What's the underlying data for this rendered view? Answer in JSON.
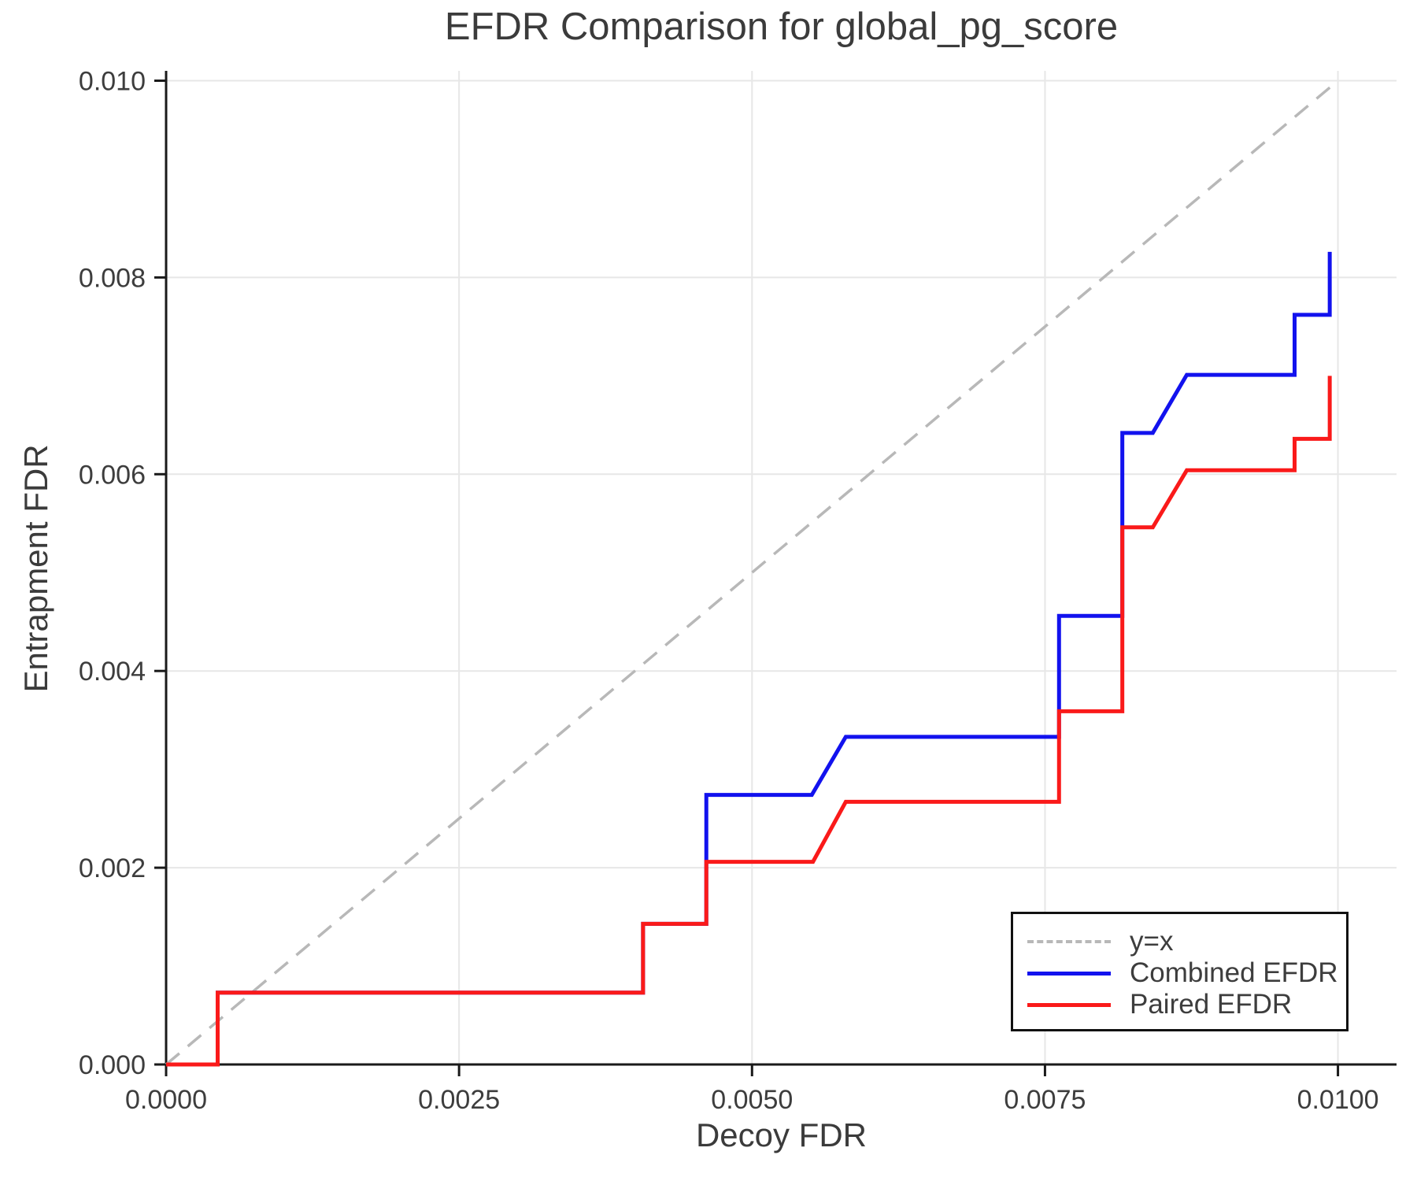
{
  "chart_data": {
    "type": "line",
    "title": "EFDR Comparison for global_pg_score",
    "xlabel": "Decoy FDR",
    "ylabel": "Entrapment FDR",
    "xlim": [
      0,
      0.0105
    ],
    "ylim": [
      0,
      0.0101
    ],
    "grid": true,
    "x_ticks": {
      "values": [
        0,
        0.0025,
        0.005,
        0.0075,
        0.01
      ],
      "labels": [
        "0.0000",
        "0.0025",
        "0.0050",
        "0.0075",
        "0.0100"
      ]
    },
    "y_ticks": {
      "values": [
        0,
        0.002,
        0.004,
        0.006,
        0.008,
        0.01
      ],
      "labels": [
        "0.000",
        "0.002",
        "0.004",
        "0.006",
        "0.008",
        "0.010"
      ]
    },
    "legend": {
      "position": "lower right",
      "entries": [
        {
          "label": "y=x",
          "color": "#b8b8b8",
          "style": "dashed"
        },
        {
          "label": "Combined EFDR",
          "color": "#1212ee",
          "style": "solid"
        },
        {
          "label": "Paired EFDR",
          "color": "#fa1a1a",
          "style": "solid"
        }
      ]
    },
    "series": [
      {
        "name": "y=x",
        "color": "#b8b8b8",
        "style": "dashed",
        "points": [
          [
            0,
            0
          ],
          [
            0.01,
            0.01
          ]
        ]
      },
      {
        "name": "Combined EFDR",
        "color": "#1212ee",
        "style": "solid",
        "points": [
          [
            0,
            0
          ],
          [
            0.00044,
            0
          ],
          [
            0.00044,
            0.00073
          ],
          [
            0.00407,
            0.00073
          ],
          [
            0.00407,
            0.00143
          ],
          [
            0.00461,
            0.00143
          ],
          [
            0.00461,
            0.00274
          ],
          [
            0.00551,
            0.00274
          ],
          [
            0.0058,
            0.00333
          ],
          [
            0.00762,
            0.00333
          ],
          [
            0.00762,
            0.00456
          ],
          [
            0.00816,
            0.00456
          ],
          [
            0.00816,
            0.00642
          ],
          [
            0.00842,
            0.00642
          ],
          [
            0.00871,
            0.00701
          ],
          [
            0.00963,
            0.00701
          ],
          [
            0.00963,
            0.00762
          ],
          [
            0.00993,
            0.00762
          ],
          [
            0.00993,
            0.00826
          ]
        ]
      },
      {
        "name": "Paired EFDR",
        "color": "#fa1a1a",
        "style": "solid",
        "points": [
          [
            0,
            0
          ],
          [
            0.00044,
            0
          ],
          [
            0.00044,
            0.00073
          ],
          [
            0.00407,
            0.00073
          ],
          [
            0.00407,
            0.00143
          ],
          [
            0.00461,
            0.00143
          ],
          [
            0.00461,
            0.00206
          ],
          [
            0.00552,
            0.00206
          ],
          [
            0.0058,
            0.00267
          ],
          [
            0.00762,
            0.00267
          ],
          [
            0.00762,
            0.00359
          ],
          [
            0.00816,
            0.00359
          ],
          [
            0.00816,
            0.00546
          ],
          [
            0.00842,
            0.00546
          ],
          [
            0.00871,
            0.00604
          ],
          [
            0.00963,
            0.00604
          ],
          [
            0.00963,
            0.00636
          ],
          [
            0.00993,
            0.00636
          ],
          [
            0.00993,
            0.007
          ]
        ]
      }
    ]
  }
}
